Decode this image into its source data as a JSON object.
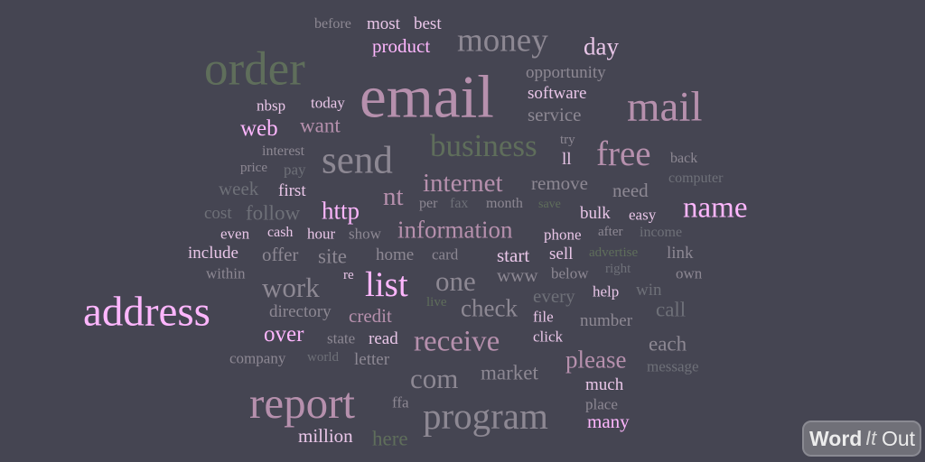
{
  "words": [
    {
      "text": "before"
    },
    {
      "text": "most"
    },
    {
      "text": "best"
    },
    {
      "text": "money"
    },
    {
      "text": "product"
    },
    {
      "text": "day"
    },
    {
      "text": "order"
    },
    {
      "text": "opportunity"
    },
    {
      "text": "email"
    },
    {
      "text": "software"
    },
    {
      "text": "mail"
    },
    {
      "text": "nbsp"
    },
    {
      "text": "today"
    },
    {
      "text": "want"
    },
    {
      "text": "service"
    },
    {
      "text": "web"
    },
    {
      "text": "business"
    },
    {
      "text": "try"
    },
    {
      "text": "interest"
    },
    {
      "text": "send"
    },
    {
      "text": "free"
    },
    {
      "text": "ll"
    },
    {
      "text": "back"
    },
    {
      "text": "price"
    },
    {
      "text": "pay"
    },
    {
      "text": "internet"
    },
    {
      "text": "computer"
    },
    {
      "text": "week"
    },
    {
      "text": "first"
    },
    {
      "text": "remove"
    },
    {
      "text": "need"
    },
    {
      "text": "nt"
    },
    {
      "text": "per"
    },
    {
      "text": "fax"
    },
    {
      "text": "month"
    },
    {
      "text": "save"
    },
    {
      "text": "cost"
    },
    {
      "text": "follow"
    },
    {
      "text": "http"
    },
    {
      "text": "bulk"
    },
    {
      "text": "easy"
    },
    {
      "text": "name"
    },
    {
      "text": "information"
    },
    {
      "text": "even"
    },
    {
      "text": "cash"
    },
    {
      "text": "hour"
    },
    {
      "text": "show"
    },
    {
      "text": "phone"
    },
    {
      "text": "after"
    },
    {
      "text": "income"
    },
    {
      "text": "include"
    },
    {
      "text": "offer"
    },
    {
      "text": "site"
    },
    {
      "text": "home"
    },
    {
      "text": "card"
    },
    {
      "text": "start"
    },
    {
      "text": "sell"
    },
    {
      "text": "advertise"
    },
    {
      "text": "link"
    },
    {
      "text": "within"
    },
    {
      "text": "re"
    },
    {
      "text": "www"
    },
    {
      "text": "below"
    },
    {
      "text": "right"
    },
    {
      "text": "own"
    },
    {
      "text": "work"
    },
    {
      "text": "list"
    },
    {
      "text": "one"
    },
    {
      "text": "address"
    },
    {
      "text": "live"
    },
    {
      "text": "every"
    },
    {
      "text": "help"
    },
    {
      "text": "win"
    },
    {
      "text": "check"
    },
    {
      "text": "call"
    },
    {
      "text": "directory"
    },
    {
      "text": "credit"
    },
    {
      "text": "file"
    },
    {
      "text": "number"
    },
    {
      "text": "over"
    },
    {
      "text": "receive"
    },
    {
      "text": "state"
    },
    {
      "text": "read"
    },
    {
      "text": "click"
    },
    {
      "text": "each"
    },
    {
      "text": "company"
    },
    {
      "text": "world"
    },
    {
      "text": "letter"
    },
    {
      "text": "please"
    },
    {
      "text": "message"
    },
    {
      "text": "market"
    },
    {
      "text": "com"
    },
    {
      "text": "much"
    },
    {
      "text": "report"
    },
    {
      "text": "ffa"
    },
    {
      "text": "place"
    },
    {
      "text": "program"
    },
    {
      "text": "many"
    },
    {
      "text": "million"
    },
    {
      "text": "here"
    }
  ],
  "logo": {
    "word": "Word",
    "it": "It",
    "out": "Out"
  }
}
